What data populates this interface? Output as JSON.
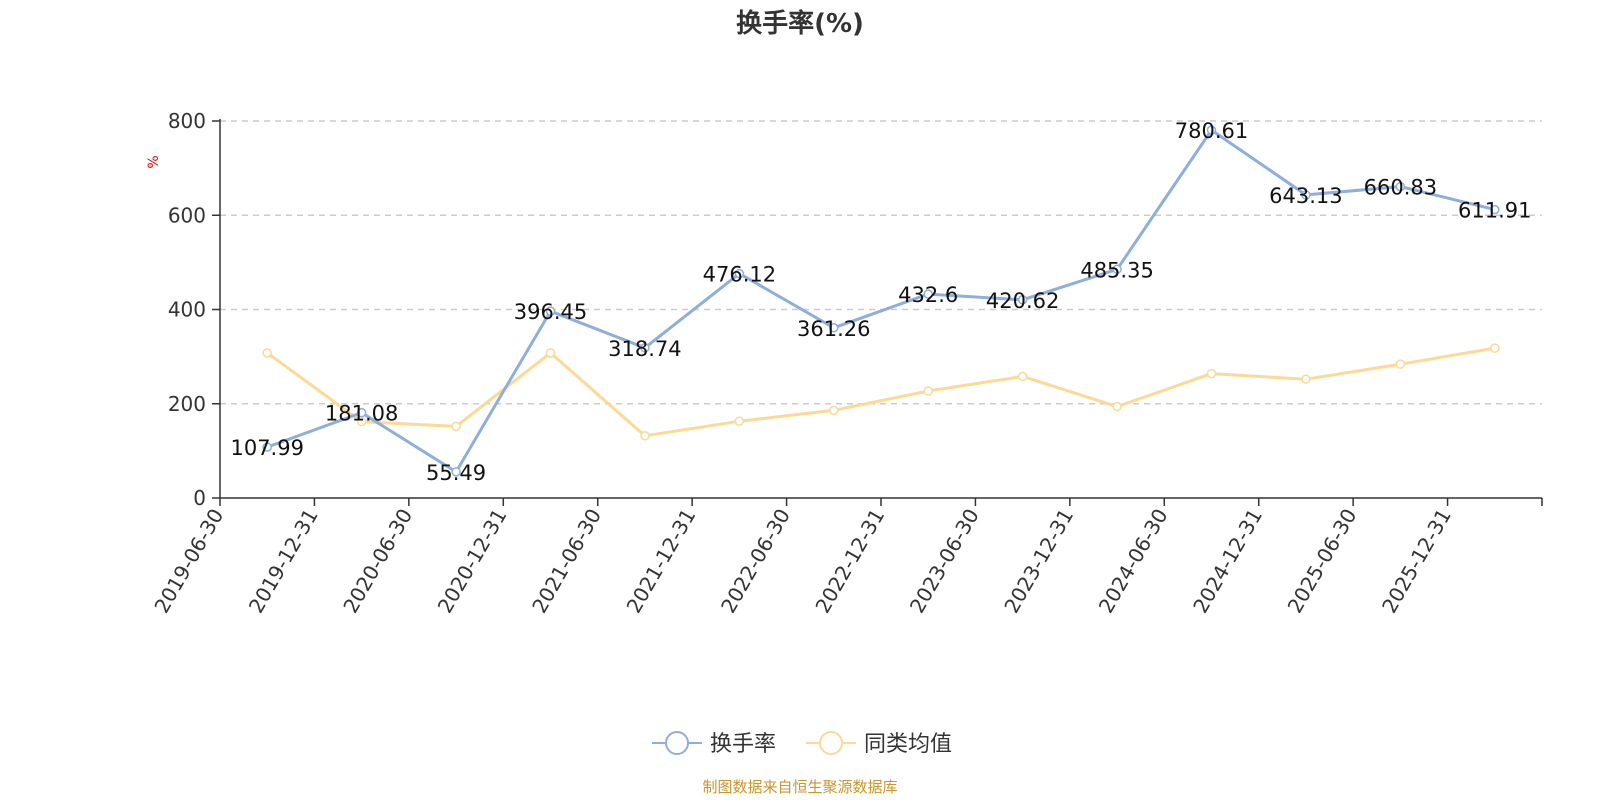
{
  "chart_data": {
    "type": "line",
    "title": "换手率(%)",
    "ylabel": "%",
    "ylim": [
      0,
      800
    ],
    "yticks": [
      0,
      200,
      400,
      600,
      800
    ],
    "grid": true,
    "legend_position": "bottom",
    "categories": [
      "2019-06-30",
      "2019-12-31",
      "2020-06-30",
      "2020-12-31",
      "2021-06-30",
      "2021-12-31",
      "2022-06-30",
      "2022-12-31",
      "2023-06-30",
      "2023-12-31",
      "2024-06-30",
      "2024-12-31",
      "2025-06-30",
      "2025-12-31"
    ],
    "series": [
      {
        "name": "换手率",
        "color": "#8eaedb",
        "show_labels": true,
        "values": [
          107.99,
          181.08,
          55.49,
          396.45,
          318.74,
          476.12,
          361.26,
          432.6,
          420.62,
          485.35,
          780.61,
          643.13,
          660.83,
          611.91
        ]
      },
      {
        "name": "同类均值",
        "color": "#fcd995",
        "show_labels": false,
        "values": [
          308,
          162,
          152,
          308,
          132,
          163,
          186,
          227,
          258,
          194,
          264,
          252,
          284,
          318
        ]
      }
    ]
  },
  "colors": {
    "unit_label": "#ee0000",
    "source": "#c8962e",
    "axis": "#333333",
    "grid": "#cccccc"
  },
  "footer": {
    "source": "制图数据来自恒生聚源数据库"
  }
}
